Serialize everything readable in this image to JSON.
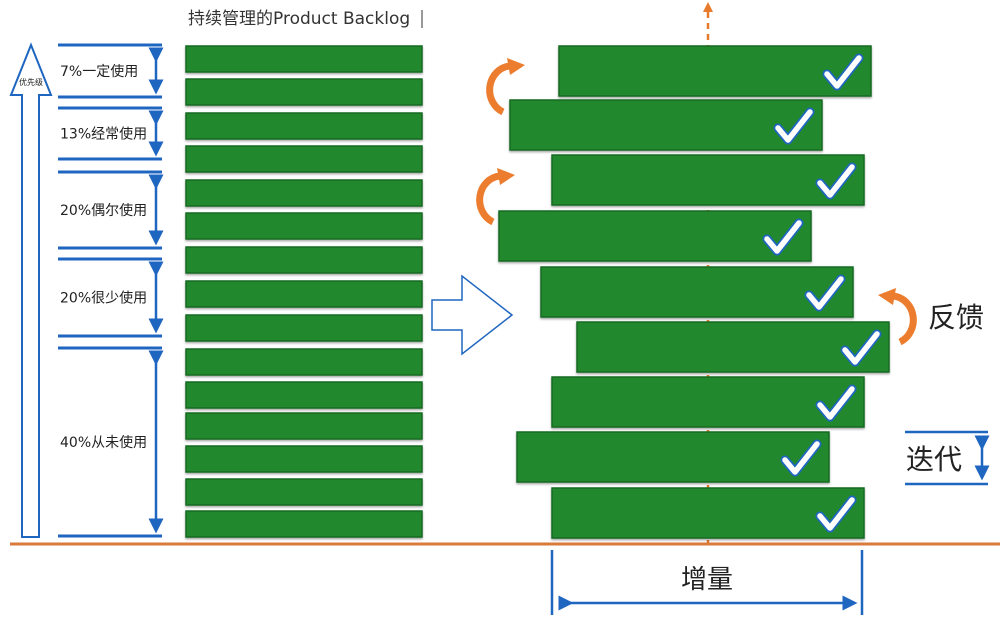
{
  "title": "持续管理的Product Backlog",
  "priority_label": "优先级",
  "usage_groups": [
    {
      "label": "7%一定使用"
    },
    {
      "label": "13%经常使用"
    },
    {
      "label": "20%偶尔使用"
    },
    {
      "label": "20%很少使用"
    },
    {
      "label": "40%从未使用"
    }
  ],
  "feedback_label": "反馈",
  "iteration_label": "迭代",
  "increment_label": "增量",
  "colors": {
    "bar": "#22882e",
    "bar_border": "#176b22",
    "blue": "#1f66c1",
    "orange": "#e87a2c"
  }
}
